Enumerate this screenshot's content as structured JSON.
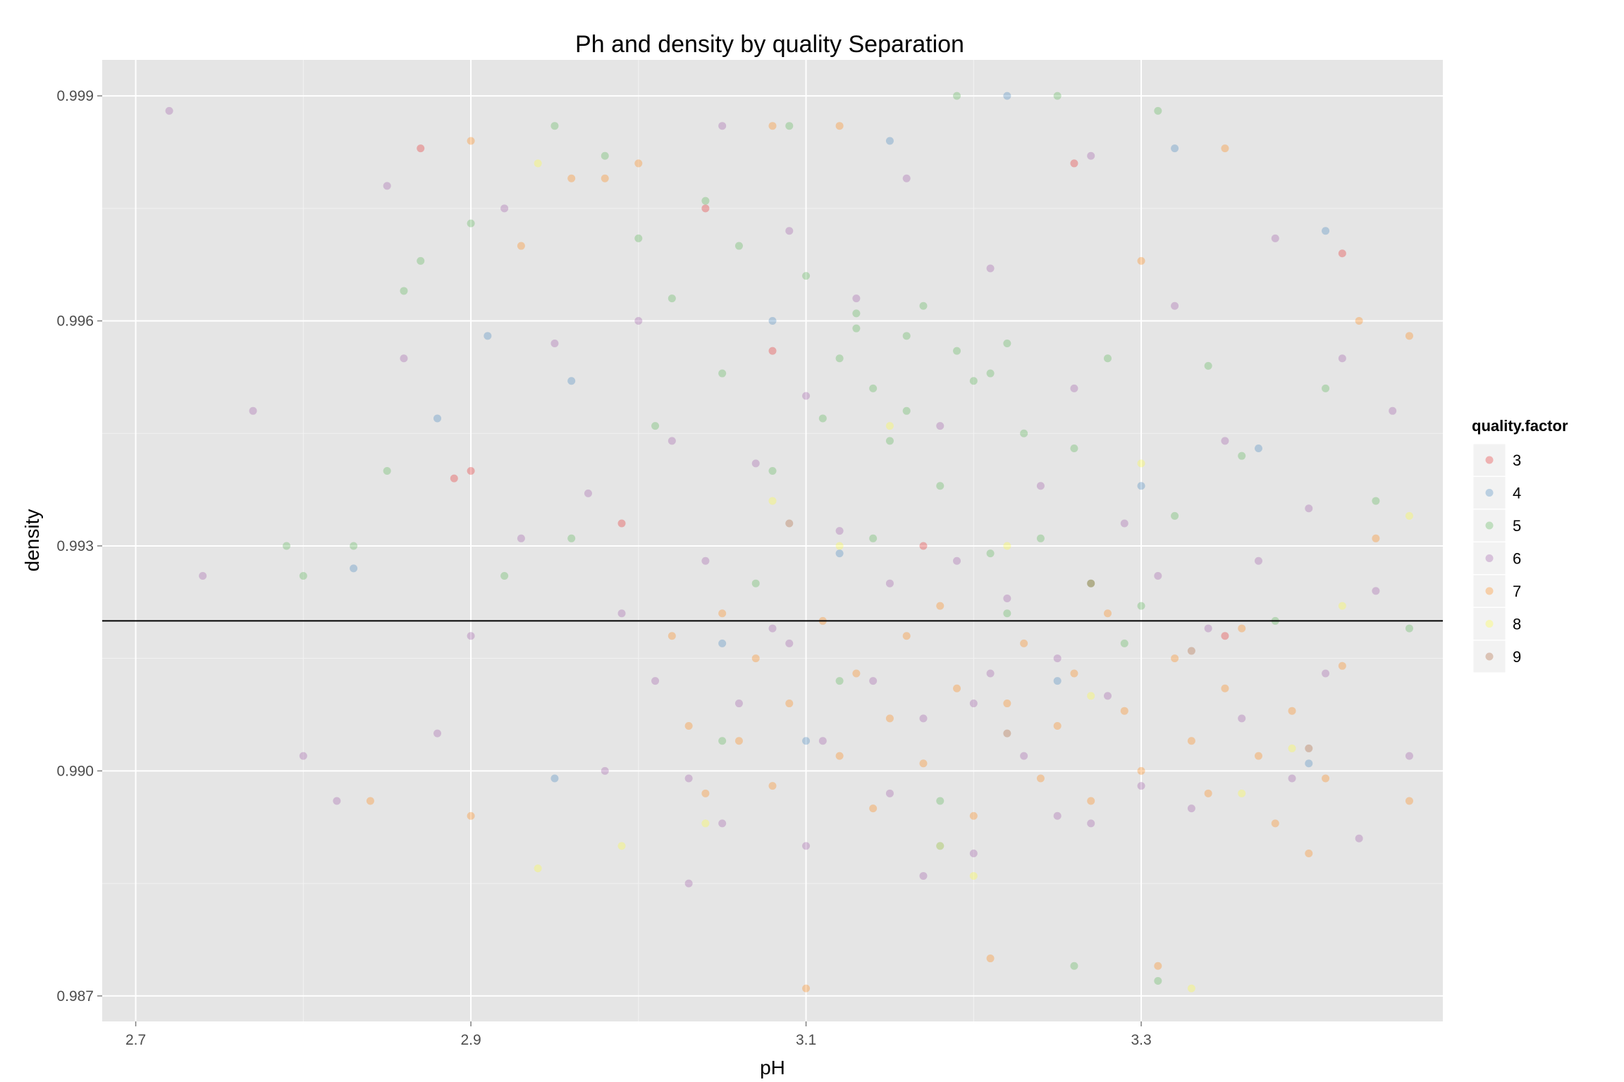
{
  "chart_data": {
    "type": "scatter",
    "title": "Ph and density by quality Separation",
    "xlabel": "pH",
    "ylabel": "density",
    "xlim": [
      2.68,
      3.48
    ],
    "ylim": [
      0.98666,
      0.99948
    ],
    "x_ticks": [
      "2.7",
      "2.9",
      "3.1",
      "3.3"
    ],
    "y_ticks": [
      "0.987",
      "0.990",
      "0.993",
      "0.996",
      "0.999"
    ],
    "grid": true,
    "background": "#e5e5e5",
    "hline": 0.992,
    "point_alpha": 0.3,
    "legend": {
      "title": "quality.factor",
      "placement": "right",
      "entries": [
        {
          "label": "3",
          "color": "#e41a1c"
        },
        {
          "label": "4",
          "color": "#377eb8"
        },
        {
          "label": "5",
          "color": "#4daf4a"
        },
        {
          "label": "6",
          "color": "#984ea3"
        },
        {
          "label": "7",
          "color": "#ff7f00"
        },
        {
          "label": "8",
          "color": "#ffff33"
        },
        {
          "label": "9",
          "color": "#a65628"
        }
      ]
    },
    "series": [
      {
        "name": "3",
        "points": [
          [
            2.87,
            0.9983
          ],
          [
            2.89,
            0.9939
          ],
          [
            2.9,
            0.994
          ],
          [
            3.26,
            0.9981
          ],
          [
            3.42,
            0.9969
          ],
          [
            3.04,
            0.9975
          ],
          [
            3.17,
            0.993
          ],
          [
            3.35,
            0.9918
          ],
          [
            3.08,
            0.9956
          ],
          [
            2.99,
            0.9933
          ]
        ]
      },
      {
        "name": "4",
        "points": [
          [
            2.83,
            0.9927
          ],
          [
            2.88,
            0.9947
          ],
          [
            2.91,
            0.9958
          ],
          [
            2.96,
            0.9952
          ],
          [
            3.15,
            0.9984
          ],
          [
            3.22,
            0.999
          ],
          [
            3.32,
            0.9983
          ],
          [
            3.37,
            0.9943
          ],
          [
            3.05,
            0.9917
          ],
          [
            3.25,
            0.9912
          ],
          [
            3.1,
            0.9904
          ],
          [
            3.41,
            0.9972
          ],
          [
            3.18,
            0.989
          ],
          [
            3.3,
            0.9938
          ],
          [
            2.95,
            0.9899
          ],
          [
            3.12,
            0.9929
          ],
          [
            3.4,
            0.9901
          ],
          [
            3.08,
            0.996
          ]
        ]
      },
      {
        "name": "5",
        "points": [
          [
            2.79,
            0.993
          ],
          [
            2.8,
            0.9926
          ],
          [
            2.83,
            0.993
          ],
          [
            2.85,
            0.994
          ],
          [
            2.86,
            0.9964
          ],
          [
            2.87,
            0.9968
          ],
          [
            2.9,
            0.9973
          ],
          [
            2.92,
            0.9926
          ],
          [
            2.95,
            0.9986
          ],
          [
            2.98,
            0.9982
          ],
          [
            3.0,
            0.9971
          ],
          [
            3.02,
            0.9963
          ],
          [
            3.04,
            0.9976
          ],
          [
            3.05,
            0.9953
          ],
          [
            3.06,
            0.997
          ],
          [
            3.08,
            0.994
          ],
          [
            3.09,
            0.9986
          ],
          [
            3.1,
            0.9966
          ],
          [
            3.11,
            0.9947
          ],
          [
            3.12,
            0.9955
          ],
          [
            3.13,
            0.9961
          ],
          [
            3.14,
            0.9951
          ],
          [
            3.15,
            0.9944
          ],
          [
            3.16,
            0.9958
          ],
          [
            3.17,
            0.9962
          ],
          [
            3.18,
            0.9938
          ],
          [
            3.19,
            0.999
          ],
          [
            3.2,
            0.9952
          ],
          [
            3.21,
            0.9929
          ],
          [
            3.22,
            0.9957
          ],
          [
            3.23,
            0.9945
          ],
          [
            3.24,
            0.9931
          ],
          [
            3.25,
            0.999
          ],
          [
            3.26,
            0.9943
          ],
          [
            3.27,
            0.9925
          ],
          [
            3.28,
            0.9955
          ],
          [
            3.29,
            0.9917
          ],
          [
            3.3,
            0.9922
          ],
          [
            3.31,
            0.9988
          ],
          [
            3.32,
            0.9934
          ],
          [
            3.34,
            0.9954
          ],
          [
            3.36,
            0.9942
          ],
          [
            3.38,
            0.992
          ],
          [
            3.41,
            0.9951
          ],
          [
            3.44,
            0.9936
          ],
          [
            3.46,
            0.9919
          ],
          [
            3.05,
            0.9904
          ],
          [
            3.12,
            0.9912
          ],
          [
            3.18,
            0.9896
          ],
          [
            3.26,
            0.9874
          ],
          [
            3.31,
            0.9872
          ],
          [
            3.14,
            0.9931
          ],
          [
            3.22,
            0.9921
          ],
          [
            3.07,
            0.9925
          ],
          [
            2.96,
            0.9931
          ],
          [
            3.01,
            0.9946
          ],
          [
            3.13,
            0.9959
          ],
          [
            3.16,
            0.9948
          ],
          [
            3.19,
            0.9956
          ],
          [
            3.21,
            0.9953
          ]
        ]
      },
      {
        "name": "6",
        "points": [
          [
            2.72,
            0.9988
          ],
          [
            2.74,
            0.9926
          ],
          [
            2.77,
            0.9948
          ],
          [
            2.8,
            0.9902
          ],
          [
            2.82,
            0.9896
          ],
          [
            2.85,
            0.9978
          ],
          [
            2.86,
            0.9955
          ],
          [
            2.88,
            0.9905
          ],
          [
            2.9,
            0.9918
          ],
          [
            2.92,
            0.9975
          ],
          [
            2.93,
            0.9931
          ],
          [
            2.95,
            0.9957
          ],
          [
            2.97,
            0.9937
          ],
          [
            2.99,
            0.9921
          ],
          [
            3.0,
            0.996
          ],
          [
            3.01,
            0.9912
          ],
          [
            3.02,
            0.9944
          ],
          [
            3.03,
            0.9899
          ],
          [
            3.04,
            0.9928
          ],
          [
            3.05,
            0.9986
          ],
          [
            3.06,
            0.9909
          ],
          [
            3.07,
            0.9941
          ],
          [
            3.08,
            0.9919
          ],
          [
            3.09,
            0.9972
          ],
          [
            3.1,
            0.995
          ],
          [
            3.11,
            0.9904
          ],
          [
            3.12,
            0.9932
          ],
          [
            3.13,
            0.9963
          ],
          [
            3.14,
            0.9912
          ],
          [
            3.15,
            0.9925
          ],
          [
            3.16,
            0.9979
          ],
          [
            3.17,
            0.9907
          ],
          [
            3.18,
            0.9946
          ],
          [
            3.19,
            0.9928
          ],
          [
            3.2,
            0.9909
          ],
          [
            3.21,
            0.9967
          ],
          [
            3.22,
            0.9923
          ],
          [
            3.23,
            0.9902
          ],
          [
            3.24,
            0.9938
          ],
          [
            3.25,
            0.9915
          ],
          [
            3.26,
            0.9951
          ],
          [
            3.27,
            0.9982
          ],
          [
            3.28,
            0.991
          ],
          [
            3.29,
            0.9933
          ],
          [
            3.3,
            0.9898
          ],
          [
            3.31,
            0.9926
          ],
          [
            3.32,
            0.9962
          ],
          [
            3.33,
            0.9895
          ],
          [
            3.34,
            0.9919
          ],
          [
            3.35,
            0.9944
          ],
          [
            3.36,
            0.9907
          ],
          [
            3.37,
            0.9928
          ],
          [
            3.38,
            0.9971
          ],
          [
            3.39,
            0.9899
          ],
          [
            3.4,
            0.9935
          ],
          [
            3.41,
            0.9913
          ],
          [
            3.42,
            0.9955
          ],
          [
            3.43,
            0.9891
          ],
          [
            3.44,
            0.9924
          ],
          [
            3.45,
            0.9948
          ],
          [
            3.46,
            0.9902
          ],
          [
            3.1,
            0.989
          ],
          [
            3.15,
            0.9897
          ],
          [
            3.2,
            0.9889
          ],
          [
            3.25,
            0.9894
          ],
          [
            3.05,
            0.9893
          ],
          [
            3.17,
            0.9886
          ],
          [
            3.21,
            0.9913
          ],
          [
            3.09,
            0.9917
          ],
          [
            2.98,
            0.99
          ],
          [
            3.03,
            0.9885
          ],
          [
            3.27,
            0.9893
          ]
        ]
      },
      {
        "name": "7",
        "points": [
          [
            2.84,
            0.9896
          ],
          [
            2.9,
            0.9894
          ],
          [
            2.93,
            0.997
          ],
          [
            2.96,
            0.9979
          ],
          [
            2.98,
            0.9979
          ],
          [
            3.0,
            0.9981
          ],
          [
            3.02,
            0.9918
          ],
          [
            3.03,
            0.9906
          ],
          [
            3.04,
            0.9897
          ],
          [
            3.05,
            0.9921
          ],
          [
            3.06,
            0.9904
          ],
          [
            3.07,
            0.9915
          ],
          [
            3.08,
            0.9898
          ],
          [
            3.09,
            0.9909
          ],
          [
            3.1,
            0.9871
          ],
          [
            3.11,
            0.992
          ],
          [
            3.12,
            0.9902
          ],
          [
            3.13,
            0.9913
          ],
          [
            3.14,
            0.9895
          ],
          [
            3.15,
            0.9907
          ],
          [
            3.16,
            0.9918
          ],
          [
            3.17,
            0.9901
          ],
          [
            3.18,
            0.9922
          ],
          [
            3.19,
            0.9911
          ],
          [
            3.2,
            0.9894
          ],
          [
            3.21,
            0.9875
          ],
          [
            3.22,
            0.9909
          ],
          [
            3.23,
            0.9917
          ],
          [
            3.24,
            0.9899
          ],
          [
            3.25,
            0.9906
          ],
          [
            3.26,
            0.9913
          ],
          [
            3.27,
            0.9896
          ],
          [
            3.28,
            0.9921
          ],
          [
            3.29,
            0.9908
          ],
          [
            3.3,
            0.99
          ],
          [
            3.31,
            0.9874
          ],
          [
            3.32,
            0.9915
          ],
          [
            3.33,
            0.9904
          ],
          [
            3.34,
            0.9897
          ],
          [
            3.35,
            0.9911
          ],
          [
            3.36,
            0.9919
          ],
          [
            3.37,
            0.9902
          ],
          [
            3.38,
            0.9893
          ],
          [
            3.39,
            0.9908
          ],
          [
            3.4,
            0.9889
          ],
          [
            3.41,
            0.9899
          ],
          [
            3.42,
            0.9914
          ],
          [
            3.43,
            0.996
          ],
          [
            3.44,
            0.9931
          ],
          [
            3.46,
            0.9896
          ],
          [
            3.46,
            0.9958
          ],
          [
            2.9,
            0.9984
          ],
          [
            3.08,
            0.9986
          ],
          [
            3.12,
            0.9986
          ],
          [
            3.3,
            0.9968
          ],
          [
            3.35,
            0.9983
          ]
        ]
      },
      {
        "name": "8",
        "points": [
          [
            2.94,
            0.9981
          ],
          [
            2.94,
            0.9887
          ],
          [
            2.99,
            0.989
          ],
          [
            3.04,
            0.9893
          ],
          [
            3.08,
            0.9936
          ],
          [
            3.12,
            0.993
          ],
          [
            3.18,
            0.989
          ],
          [
            3.22,
            0.993
          ],
          [
            3.27,
            0.991
          ],
          [
            3.33,
            0.9871
          ],
          [
            3.36,
            0.9897
          ],
          [
            3.39,
            0.9903
          ],
          [
            3.42,
            0.9922
          ],
          [
            3.46,
            0.9934
          ],
          [
            3.2,
            0.9886
          ],
          [
            3.15,
            0.9946
          ],
          [
            3.3,
            0.9941
          ]
        ]
      },
      {
        "name": "9",
        "points": [
          [
            3.09,
            0.9933
          ],
          [
            3.22,
            0.9905
          ],
          [
            3.33,
            0.9916
          ],
          [
            3.4,
            0.9903
          ],
          [
            3.27,
            0.9925
          ]
        ]
      }
    ]
  }
}
